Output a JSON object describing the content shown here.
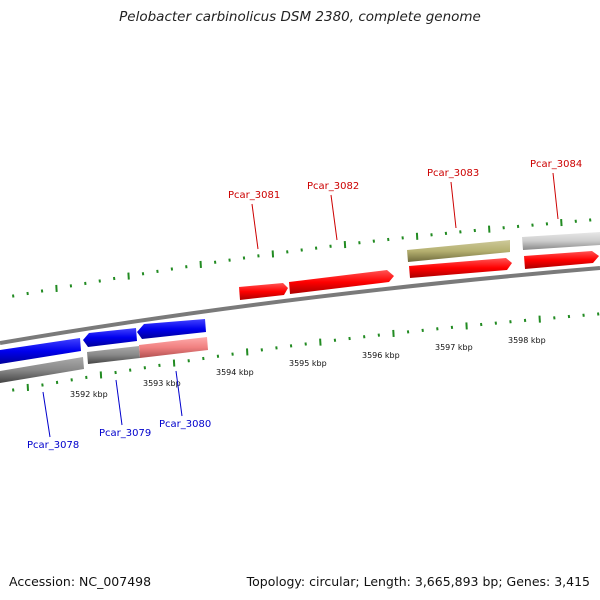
{
  "title": "Pelobacter carbinolicus DSM 2380, complete genome",
  "footer": {
    "accession": "Accession: NC_007498",
    "summary": "Topology: circular; Length: 3,665,893 bp; Genes: 3,415"
  },
  "colors": {
    "forward_label": "#cc0000",
    "reverse_label": "#0000cc",
    "tick": "#228b22",
    "backbone": "#808080"
  },
  "scale_labels": [
    "3592 kbp",
    "3593 kbp",
    "3594 kbp",
    "3595 kbp",
    "3596 kbp",
    "3597 kbp",
    "3598 kbp"
  ],
  "forward_genes": [
    {
      "label": "Pcar_3081",
      "color": "#cc0000"
    },
    {
      "label": "Pcar_3082",
      "color": "#cc0000"
    },
    {
      "label": "Pcar_3083",
      "color": "#cc0000"
    },
    {
      "label": "Pcar_3084",
      "color": "#cc0000"
    }
  ],
  "reverse_genes": [
    {
      "label": "Pcar_3078",
      "color": "#0000cc"
    },
    {
      "label": "Pcar_3079",
      "color": "#0000cc"
    },
    {
      "label": "Pcar_3080",
      "color": "#0000cc"
    }
  ]
}
